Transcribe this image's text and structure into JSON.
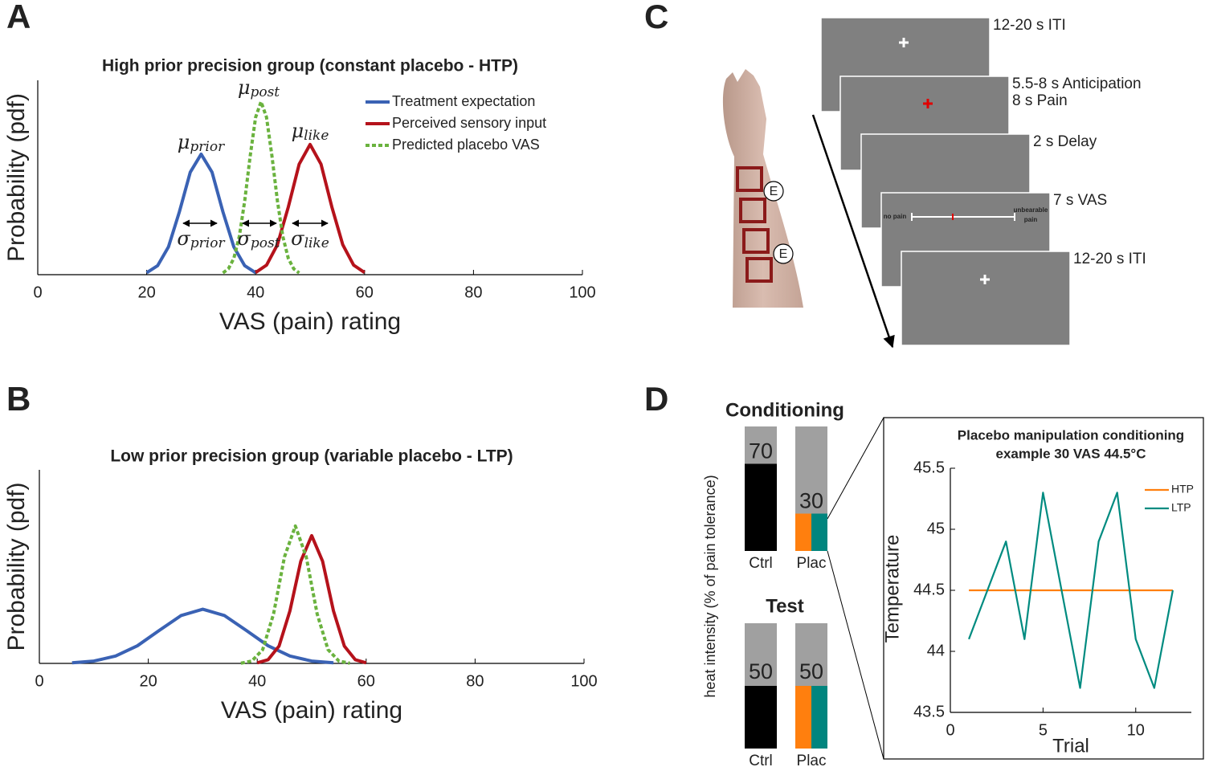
{
  "panel_labels": [
    "A",
    "B",
    "C",
    "D"
  ],
  "chart_data": [
    {
      "type": "line",
      "title": "High prior precision group (constant placebo - HTP)",
      "xlabel": "VAS (pain) rating",
      "ylabel": "Probability (pdf)",
      "xlim": [
        0,
        100
      ],
      "xticks": [
        0,
        20,
        40,
        60,
        80,
        100
      ],
      "ylim": [
        0,
        1
      ],
      "legend": "upper right",
      "series": [
        {
          "name": "Treatment expectation",
          "color": "#3a62b4",
          "style": "solid",
          "x": [
            20,
            22,
            24,
            26,
            28,
            30,
            32,
            34,
            36,
            38,
            40
          ],
          "values": [
            0.01,
            0.046,
            0.143,
            0.323,
            0.527,
            0.62,
            0.527,
            0.323,
            0.143,
            0.046,
            0.01
          ]
        },
        {
          "name": "Perceived sensory input",
          "color": "#b5121b",
          "style": "solid",
          "x": [
            40,
            42,
            44,
            46,
            48,
            50,
            52,
            54,
            56,
            58,
            60
          ],
          "values": [
            0.011,
            0.049,
            0.154,
            0.348,
            0.569,
            0.67,
            0.569,
            0.348,
            0.154,
            0.049,
            0.011
          ]
        },
        {
          "name": "Predicted placebo VAS",
          "color": "#6ab23e",
          "style": "dotted",
          "x": [
            34,
            35,
            36,
            37,
            38,
            39,
            40,
            41,
            42,
            43,
            44,
            45,
            46,
            47,
            48
          ],
          "values": [
            0.009,
            0.03,
            0.084,
            0.196,
            0.38,
            0.61,
            0.81,
            0.89,
            0.81,
            0.61,
            0.38,
            0.196,
            0.084,
            0.03,
            0.009
          ]
        }
      ],
      "annotations": [
        {
          "symbol": "μ",
          "sub": "prior"
        },
        {
          "symbol": "μ",
          "sub": "post"
        },
        {
          "symbol": "μ",
          "sub": "like"
        },
        {
          "symbol": "σ",
          "sub": "prior"
        },
        {
          "symbol": "σ",
          "sub": "post"
        },
        {
          "symbol": "σ",
          "sub": "like"
        }
      ]
    },
    {
      "type": "line",
      "title": "Low prior precision group (variable placebo - LTP)",
      "xlabel": "VAS (pain) rating",
      "ylabel": "Probability (pdf)",
      "xlim": [
        0,
        100
      ],
      "xticks": [
        0,
        20,
        40,
        60,
        80,
        100
      ],
      "ylim": [
        0,
        1
      ],
      "series": [
        {
          "color": "#3a62b4",
          "style": "solid",
          "x": [
            6,
            10,
            14,
            18,
            22,
            26,
            30,
            34,
            38,
            42,
            46,
            50,
            54
          ],
          "values": [
            0.003,
            0.012,
            0.038,
            0.091,
            0.17,
            0.247,
            0.28,
            0.247,
            0.17,
            0.091,
            0.038,
            0.012,
            0.003
          ]
        },
        {
          "color": "#b5121b",
          "style": "solid",
          "x": [
            40,
            42,
            44,
            46,
            48,
            50,
            52,
            54,
            56,
            58,
            60
          ],
          "values": [
            0.003,
            0.019,
            0.089,
            0.271,
            0.528,
            0.66,
            0.528,
            0.271,
            0.089,
            0.019,
            0.003
          ]
        },
        {
          "color": "#6ab23e",
          "style": "dotted",
          "x": [
            37,
            39,
            41,
            43,
            45,
            47,
            49,
            51,
            53,
            55,
            57
          ],
          "values": [
            0.001,
            0.012,
            0.071,
            0.256,
            0.55,
            0.71,
            0.55,
            0.256,
            0.071,
            0.012,
            0.001
          ]
        }
      ]
    },
    {
      "type": "stacked-bar",
      "title": "Conditioning",
      "ylabel": "heat intensity (% of pain tolerance)",
      "categories": [
        "Ctrl",
        "Plac"
      ],
      "values": [
        70,
        30
      ],
      "ylim": [
        0,
        100
      ],
      "colors": [
        [
          "#000000"
        ],
        [
          "#ff7f0e",
          "#00857e"
        ]
      ],
      "background": "#a0a0a0"
    },
    {
      "type": "stacked-bar",
      "title": "Test",
      "categories": [
        "Ctrl",
        "Plac"
      ],
      "values": [
        50,
        50
      ],
      "ylim": [
        0,
        100
      ],
      "colors": [
        [
          "#000000"
        ],
        [
          "#ff7f0e",
          "#00857e"
        ]
      ],
      "background": "#a0a0a0"
    },
    {
      "type": "line",
      "title": "Placebo manipulation conditioning",
      "subtitle": "example 30 VAS 44.5°C",
      "xlabel": "Trial",
      "ylabel": "Temperature",
      "x": [
        1,
        2,
        3,
        4,
        5,
        6,
        7,
        8,
        9,
        10,
        11,
        12
      ],
      "xlim": [
        0,
        13
      ],
      "xticks": [
        0,
        5,
        10
      ],
      "ylim": [
        43.5,
        45.5
      ],
      "yticks": [
        43.5,
        44,
        44.5,
        45,
        45.5
      ],
      "legend": "upper right",
      "series": [
        {
          "name": "HTP",
          "color": "#ff7f0e",
          "style": "solid",
          "values": [
            44.5,
            44.5,
            44.5,
            44.5,
            44.5,
            44.5,
            44.5,
            44.5,
            44.5,
            44.5,
            44.5,
            44.5
          ]
        },
        {
          "name": "LTP",
          "color": "#008b80",
          "style": "solid",
          "values": [
            44.1,
            44.5,
            44.9,
            44.1,
            45.3,
            44.5,
            43.7,
            44.9,
            45.3,
            44.1,
            43.7,
            44.5
          ]
        }
      ]
    }
  ],
  "diagram": {
    "screens": [
      [
        "12-20 s ITI"
      ],
      [
        "5.5-8 s Anticipation",
        "8 s Pain"
      ],
      [
        "2 s Delay"
      ],
      [
        "7 s VAS"
      ],
      [
        "12-20 s ITI"
      ]
    ],
    "vas_scale": {
      "left": "no pain",
      "right": [
        "unbearable",
        "pain"
      ]
    },
    "electrodes": [
      "E",
      "E"
    ]
  }
}
